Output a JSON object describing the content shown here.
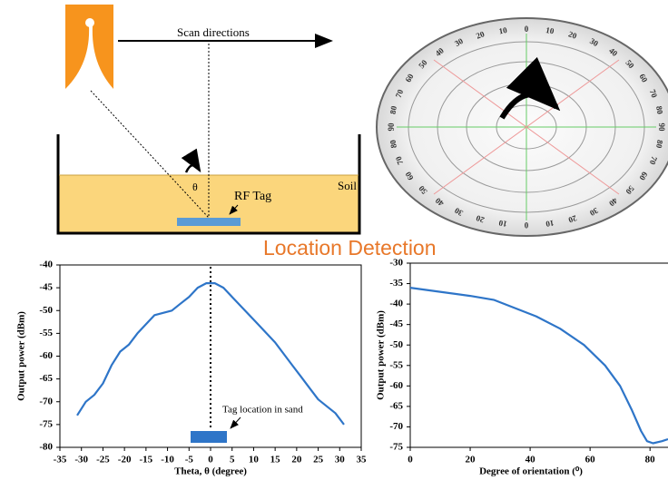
{
  "diagram": {
    "scan_label": "Scan directions",
    "theta_label": "θ",
    "tag_label": "RF Tag",
    "soil_label": "Soil",
    "protractor_labels": [
      "0",
      "10",
      "20",
      "30",
      "40",
      "50",
      "60",
      "70",
      "80",
      "90"
    ],
    "heading": "Location  Detection"
  },
  "chart_data": [
    {
      "type": "line",
      "ylabel": "Output power (dBm)",
      "xlabel": "Theta, θ (degree)",
      "annotation": "Tag location in sand",
      "x": [
        -31,
        -29,
        -27,
        -25,
        -23,
        -21,
        -19,
        -17,
        -15,
        -13,
        -11,
        -9,
        -7,
        -5,
        -3,
        -1,
        0,
        1,
        3,
        5,
        7,
        9,
        11,
        13,
        15,
        17,
        19,
        21,
        23,
        25,
        27,
        29,
        31
      ],
      "values": [
        -73,
        -70,
        -68.5,
        -66,
        -62,
        -59,
        -57.5,
        -55,
        -53,
        -51,
        -50.5,
        -50,
        -48.5,
        -47,
        -45,
        -44,
        -44,
        -44,
        -45,
        -47,
        -49,
        -51,
        -53,
        -55,
        -57,
        -59.5,
        -62,
        -64.5,
        -67,
        -69.5,
        -71,
        -72.5,
        -75
      ],
      "color": "#2e75c8",
      "xlim": [
        -35,
        35
      ],
      "xticks": [
        -35,
        -30,
        -25,
        -20,
        -15,
        -10,
        -5,
        0,
        5,
        10,
        15,
        20,
        25,
        30,
        35
      ],
      "ylim": [
        -80,
        -40
      ],
      "yticks": [
        -80,
        -75,
        -70,
        -65,
        -60,
        -55,
        -50,
        -45,
        -40
      ]
    },
    {
      "type": "line",
      "ylabel": "Output power (dBm)",
      "xlabel": "Degree of orientation (⁰)",
      "x": [
        0,
        10,
        20,
        28,
        35,
        42,
        50,
        58,
        65,
        70,
        74,
        77,
        79,
        81,
        84,
        86
      ],
      "values": [
        -36,
        -37,
        -38,
        -39,
        -41,
        -43,
        -46,
        -50,
        -55,
        -60,
        -66,
        -71,
        -73.5,
        -74,
        -73.5,
        -73
      ],
      "color": "#2e75c8",
      "xlim": [
        0,
        86
      ],
      "xticks": [
        0,
        20,
        40,
        60,
        80
      ],
      "ylim": [
        -75,
        -30
      ],
      "yticks": [
        -75,
        -70,
        -65,
        -60,
        -55,
        -50,
        -45,
        -40,
        -35,
        -30
      ]
    }
  ]
}
